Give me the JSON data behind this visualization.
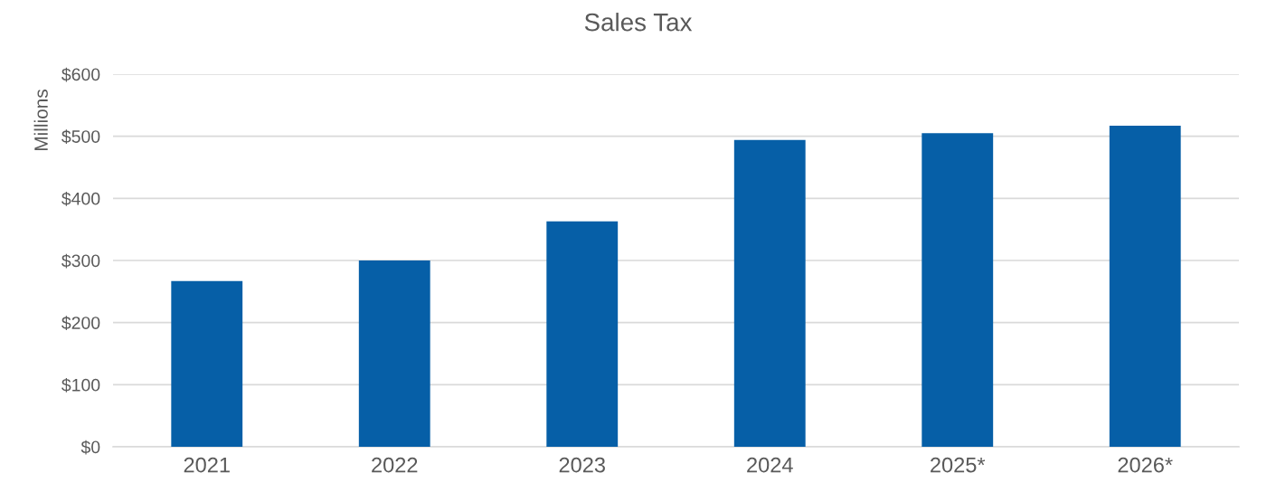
{
  "chart_data": {
    "type": "bar",
    "title": "Sales Tax",
    "ylabel": "Millions",
    "categories": [
      "2021",
      "2022",
      "2023",
      "2024",
      "2025*",
      "2026*"
    ],
    "values": [
      267,
      300,
      363,
      494,
      505,
      517
    ],
    "color": "#065fa7",
    "ylim": [
      0,
      600
    ],
    "yticks": [
      {
        "value": 0,
        "label": "$0"
      },
      {
        "value": 100,
        "label": "$100"
      },
      {
        "value": 200,
        "label": "$200"
      },
      {
        "value": 300,
        "label": "$300"
      },
      {
        "value": 400,
        "label": "$400"
      },
      {
        "value": 500,
        "label": "$500"
      },
      {
        "value": 600,
        "label": "$600"
      }
    ],
    "grid": "y"
  }
}
